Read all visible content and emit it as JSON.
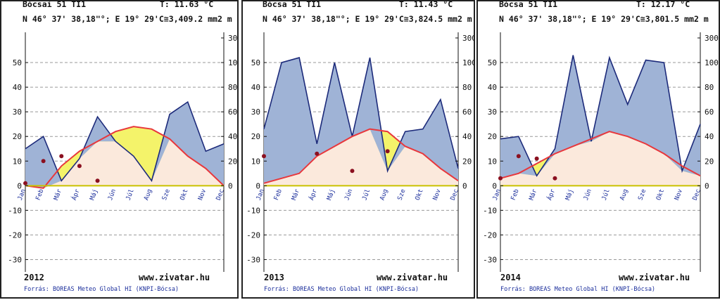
{
  "colors": {
    "precip": "#9fb3d6",
    "precip_line": "#1c2a7a",
    "temp_line": "#e8373c",
    "temp_fill": "#fbe9dc",
    "dry": "#f4f36a",
    "dots": "#8b1020",
    "zero": "#c9c200"
  },
  "left_axis": {
    "ticks": [
      50,
      40,
      30,
      20,
      10,
      0,
      -10,
      -20,
      -30
    ],
    "ylim": [
      -35,
      60
    ]
  },
  "right_axis": {
    "ticks": [
      300,
      100,
      80,
      60,
      40,
      20,
      0
    ]
  },
  "months": [
    "Jan",
    "Feb",
    "Már",
    "Ápr",
    "Máj",
    "Jún",
    "Júl",
    "Aug",
    "Sze",
    "Okt",
    "Nov",
    "Dec"
  ],
  "chart_data": [
    {
      "type": "area",
      "station": "Bócsai 51 TI1",
      "temperature_label": "T: 11.63 °C",
      "coords": "N 46° 37' 38,18\"°; E 19° 29'C≅3,409.2 mm2 m",
      "year": "2012",
      "site": "www.zivatar.hu",
      "source": "Forrás: BOREAS Meteo Global HI (KNPI-Bócsa)",
      "series": [
        {
          "name": "T",
          "values": [
            0,
            -1,
            8,
            14,
            18,
            22,
            24,
            23,
            19,
            12,
            7,
            0
          ]
        },
        {
          "name": "P",
          "values": [
            30,
            40,
            4,
            22,
            56,
            36,
            24,
            4,
            58,
            68,
            28,
            34
          ]
        }
      ],
      "dots": [
        1,
        10,
        12,
        8,
        2
      ]
    },
    {
      "type": "area",
      "station": "Bócsa 51 TI1",
      "temperature_label": "T: 11.43 °C",
      "coords": "N 46° 37' 38,18\"°; E 19° 29'C≅3,824.5 mm2 m",
      "year": "2013",
      "site": "www.zivatar.hu",
      "source": "Forrás: BOREAS Meteo Global HI (KNPI-Bócsa)",
      "series": [
        {
          "name": "T",
          "values": [
            1,
            3,
            5,
            12,
            16,
            20,
            23,
            22,
            16,
            13,
            7,
            2
          ]
        },
        {
          "name": "P",
          "values": [
            46,
            100,
            104,
            34,
            100,
            40,
            104,
            12,
            44,
            46,
            70,
            14
          ]
        }
      ],
      "dots": [
        12,
        13,
        6,
        14
      ]
    },
    {
      "type": "area",
      "station": "Bócsa 51 TI1",
      "temperature_label": "T: 12.17 °C",
      "coords": "N 46° 37' 38,18\"°; E 19° 29'C≅3,801.5 mm2 m",
      "year": "2014",
      "site": "www.zivatar.hu",
      "source": "Forrás: BOREAS Meteo Global HI (KNPI-Bócsa)",
      "series": [
        {
          "name": "T",
          "values": [
            3,
            5,
            9,
            13,
            16,
            19,
            22,
            20,
            17,
            13,
            8,
            4
          ]
        },
        {
          "name": "P",
          "values": [
            38,
            40,
            8,
            30,
            106,
            36,
            104,
            66,
            102,
            100,
            12,
            50
          ]
        }
      ],
      "dots": [
        3,
        12,
        11,
        3
      ]
    }
  ]
}
